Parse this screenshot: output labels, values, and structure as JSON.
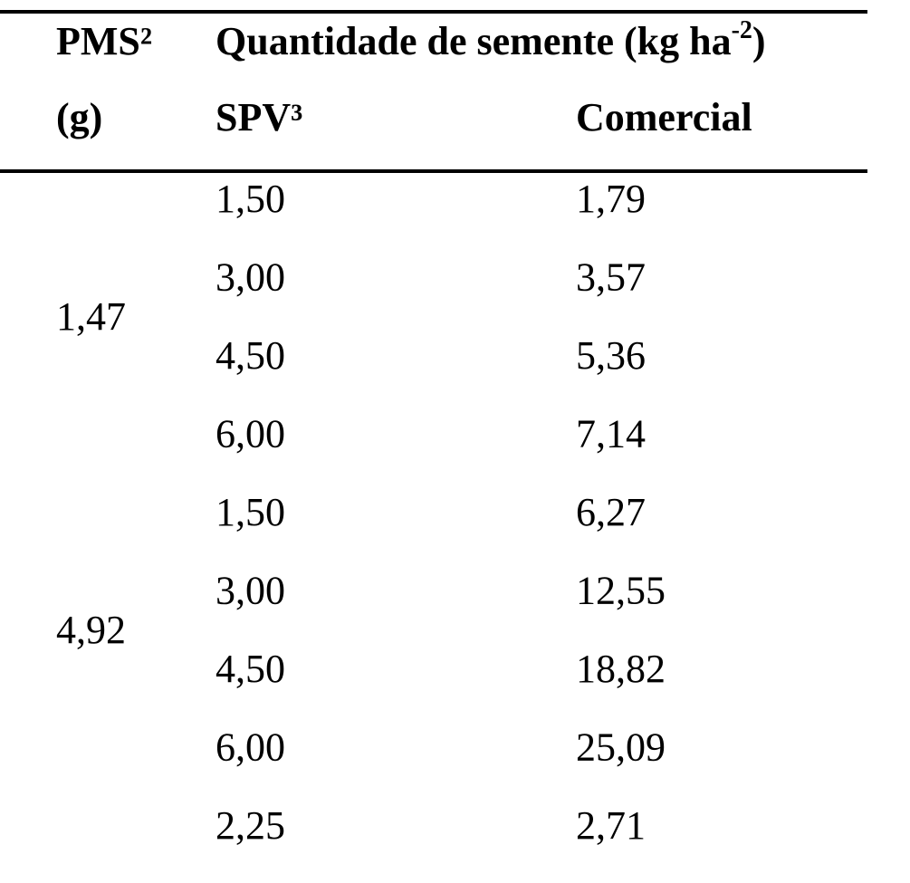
{
  "header": {
    "pms": "PMS²",
    "pms_unit": "(g)",
    "quantity": "Quantidade de semente (kg ha",
    "quantity_sup": "-2",
    "quantity_close": ")",
    "spv": "SPV³",
    "comercial": "Comercial"
  },
  "groups": [
    {
      "pms": "1,47",
      "rows": [
        [
          "1,50",
          "1,79"
        ],
        [
          "3,00",
          "3,57"
        ],
        [
          "4,50",
          "5,36"
        ],
        [
          "6,00",
          "7,14"
        ]
      ]
    },
    {
      "pms": "4,92",
      "rows": [
        [
          "1,50",
          "6,27"
        ],
        [
          "3,00",
          "12,55"
        ],
        [
          "4,50",
          "18,82"
        ],
        [
          "6,00",
          "25,09"
        ]
      ]
    },
    {
      "rows": [
        [
          "2,25",
          "2,71"
        ]
      ]
    }
  ]
}
